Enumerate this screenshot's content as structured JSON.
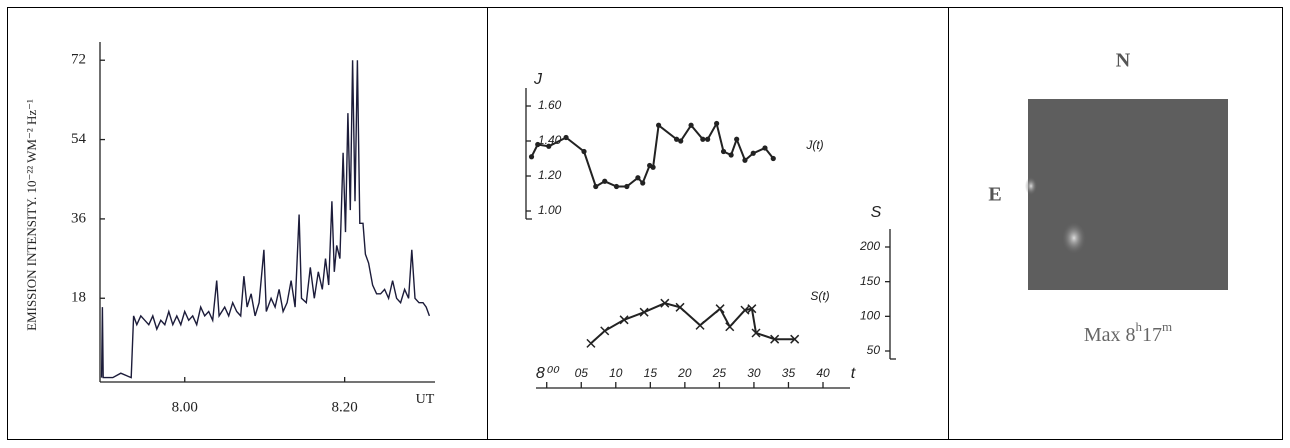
{
  "chart_data": [
    {
      "type": "line",
      "ylabel": "EMISSION INTENSITY. 10⁻²² WM⁻² Hz⁻¹",
      "xlabel": "UT",
      "color": "#1c1c3a",
      "x": [
        469.6,
        469.7,
        469.8,
        471,
        472,
        473.3,
        473.6,
        474,
        474.5,
        475,
        475.5,
        476,
        476.5,
        477,
        477.5,
        478,
        478.5,
        479,
        479.5,
        480,
        480.5,
        481,
        481.5,
        482,
        482.5,
        483,
        483.5,
        484,
        484.3,
        485,
        485.5,
        486,
        486.5,
        487,
        487.4,
        487.8,
        488.3,
        488.8,
        489.3,
        489.9,
        490.2,
        490.8,
        491.3,
        491.8,
        492.3,
        492.8,
        493.3,
        493.8,
        494.3,
        494.6,
        495.2,
        495.7,
        496.2,
        496.7,
        497.2,
        497.6,
        498,
        498.4,
        498.7,
        499,
        499.4,
        499.8,
        500.1,
        500.4,
        500.7,
        501,
        501.3,
        501.6,
        501.9,
        502.3,
        502.6,
        503,
        503.5,
        504,
        504.5,
        505,
        505.5,
        506,
        506.5,
        507,
        507.5,
        508,
        508.4,
        508.8,
        509.3,
        509.8,
        510.2,
        510.6
      ],
      "values": [
        0,
        16,
        0,
        0,
        1,
        0,
        14,
        12,
        14,
        13,
        12,
        14,
        11,
        13,
        12,
        15,
        12,
        14,
        12,
        15,
        13,
        14,
        12,
        16,
        14,
        15,
        13,
        22,
        14,
        16,
        14,
        17,
        15,
        14,
        23,
        16,
        19,
        14,
        17,
        29,
        15,
        18,
        16,
        20,
        15,
        17,
        22,
        16,
        37,
        18,
        17,
        25,
        18,
        24,
        20,
        27,
        21,
        40,
        24,
        30,
        27,
        51,
        33,
        60,
        38,
        72,
        40,
        72,
        35,
        35,
        28,
        26,
        21,
        19,
        19,
        20,
        18,
        22,
        18,
        17,
        20,
        18,
        29,
        18,
        17,
        17,
        16,
        14
      ],
      "xlim": [
        469.4,
        511.3
      ],
      "xticks": [
        {
          "value": 480,
          "label": "8.00"
        },
        {
          "value": 500,
          "label": "8.20"
        }
      ],
      "ylim": [
        -1,
        75
      ],
      "yticks": [
        18,
        36,
        54,
        72
      ]
    },
    {
      "type": "line",
      "ylabel": "J",
      "marker": "dot",
      "x": [
        -2.2,
        -1.3,
        0.3,
        2.8,
        5.4,
        7.1,
        8.4,
        10.1,
        11.6,
        13.2,
        13.9,
        14.9,
        15.4,
        16.2,
        18.8,
        19.4,
        20.9,
        22.6,
        23.3,
        24.6,
        25.6,
        26.7,
        27.5,
        28.7,
        29.9,
        31.6,
        32.8
      ],
      "series": [
        {
          "name": "J(t)",
          "color": "#222222",
          "values": [
            1.31,
            1.38,
            1.37,
            1.42,
            1.34,
            1.14,
            1.17,
            1.14,
            1.14,
            1.19,
            1.16,
            1.26,
            1.25,
            1.49,
            1.41,
            1.4,
            1.49,
            1.41,
            1.41,
            1.5,
            1.34,
            1.32,
            1.41,
            1.29,
            1.33,
            1.36,
            1.3
          ]
        }
      ],
      "xlim": [
        -3,
        40
      ],
      "ylim": [
        1.0,
        1.6
      ],
      "yticks": [
        {
          "value": 1.0,
          "label": "1.00"
        },
        {
          "value": 1.2,
          "label": "1.20"
        },
        {
          "value": 1.4,
          "label": "1.40"
        },
        {
          "value": 1.6,
          "label": "1.60"
        }
      ]
    },
    {
      "type": "line",
      "ylabel": "S",
      "xlabel": "t",
      "marker": "cross",
      "x": [
        6.4,
        8.4,
        11.2,
        14.1,
        17.1,
        19.3,
        22.2,
        25.1,
        26.5,
        28.7,
        29.7,
        30.3,
        33,
        35.9
      ],
      "series": [
        {
          "name": "S(t)",
          "color": "#222222",
          "values": [
            61,
            79,
            95,
            106,
            119,
            113,
            87,
            111,
            85,
            109,
            111,
            76,
            67,
            67
          ]
        }
      ],
      "xlim": [
        -3,
        40
      ],
      "xticks": [
        {
          "value": 0,
          "label": "8⁰⁰"
        },
        {
          "value": 5,
          "label": "05"
        },
        10,
        15,
        20,
        25,
        30,
        35,
        40
      ],
      "ylim": [
        50,
        200
      ],
      "yticks": [
        50,
        100,
        150,
        200
      ]
    }
  ],
  "image_panel": {
    "north": "N",
    "east": "E",
    "caption": [
      "Max 8",
      "h",
      "17",
      "m"
    ]
  }
}
